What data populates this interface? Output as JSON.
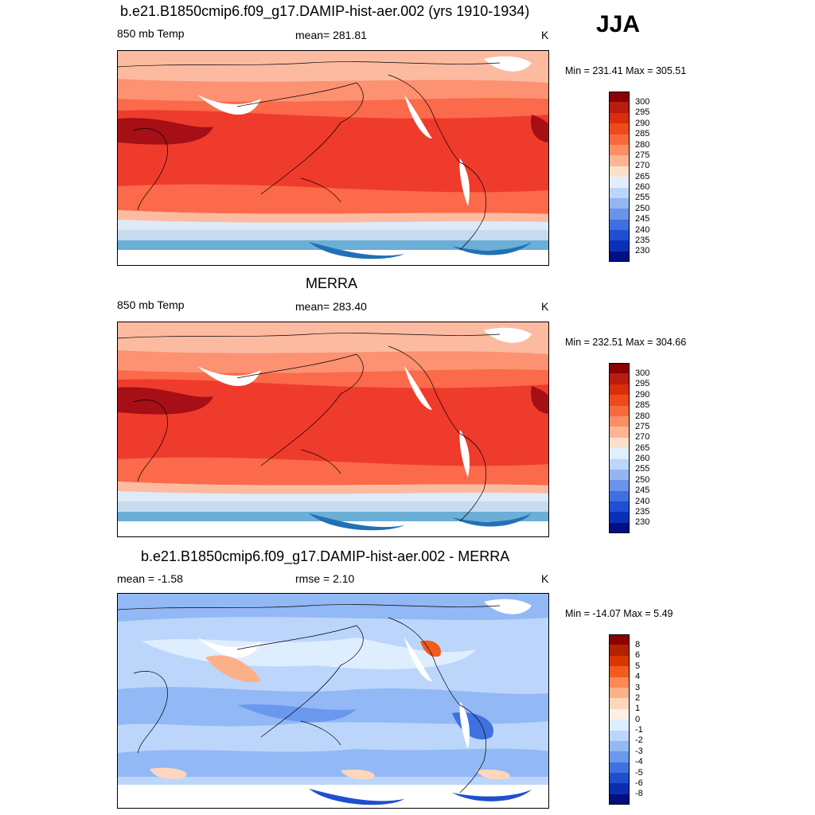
{
  "season": "JJA",
  "panels": [
    {
      "title": "b.e21.B1850cmip6.f09_g17.DAMIP-hist-aer.002 (yrs 1910-1934)",
      "left_label": "850 mb Temp",
      "center_label": "mean= 281.81",
      "units": "K",
      "minmax": "Min = 231.41 Max = 305.51",
      "levels": [
        "300",
        "295",
        "290",
        "285",
        "280",
        "275",
        "270",
        "265",
        "260",
        "255",
        "250",
        "245",
        "240",
        "235",
        "230"
      ]
    },
    {
      "title": "MERRA",
      "left_label": "850 mb Temp",
      "center_label": "mean= 283.40",
      "units": "K",
      "minmax": "Min = 232.51 Max = 304.66",
      "levels": [
        "300",
        "295",
        "290",
        "285",
        "280",
        "275",
        "270",
        "265",
        "260",
        "255",
        "250",
        "245",
        "240",
        "235",
        "230"
      ]
    },
    {
      "title": "b.e21.B1850cmip6.f09_g17.DAMIP-hist-aer.002 - MERRA",
      "left_label": "mean =  -1.58",
      "center_label": "rmse =   2.10",
      "units": "K",
      "minmax": "Min = -14.07 Max =   5.49",
      "levels": [
        "8",
        "6",
        "5",
        "4",
        "3",
        "2",
        "1",
        "0",
        "-1",
        "-2",
        "-3",
        "-4",
        "-5",
        "-6",
        "-8"
      ]
    }
  ],
  "colors": {
    "temp_scale": [
      "#67000d",
      "#a50f15",
      "#cb181d",
      "#ef3b2c",
      "#fb6a4a",
      "#fc9272",
      "#fcbba1",
      "#fee0d2",
      "#deebf7",
      "#c6dbef",
      "#9ecae1",
      "#6baed6",
      "#4292c6",
      "#2171b5",
      "#084594",
      "#08306b"
    ],
    "diff_scale": [
      "#8b0000",
      "#b22200",
      "#d93600",
      "#f25a1e",
      "#fb8a55",
      "#fcb088",
      "#fdd6bd",
      "#fff0e6",
      "#dfeeff",
      "#bcd6fb",
      "#92b8f5",
      "#6a98ec",
      "#3f72e0",
      "#1f4fcf",
      "#0a2fae",
      "#000f82"
    ]
  }
}
